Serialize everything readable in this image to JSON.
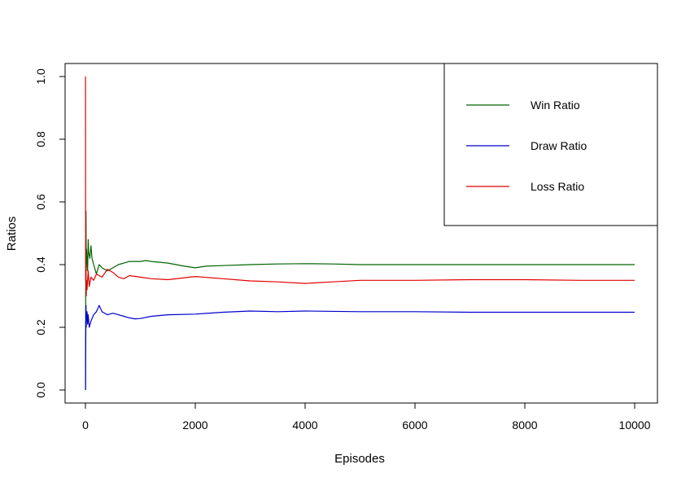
{
  "chart_data": {
    "type": "line",
    "xlabel": "Episodes",
    "ylabel": "Ratios",
    "xlim": [
      0,
      10000
    ],
    "ylim": [
      0,
      1
    ],
    "x_ticks": [
      0,
      2000,
      4000,
      6000,
      8000,
      10000
    ],
    "y_ticks": [
      0.0,
      0.2,
      0.4,
      0.6,
      0.8,
      1.0
    ],
    "x_tick_labels": [
      "0",
      "2000",
      "4000",
      "6000",
      "8000",
      "10000"
    ],
    "y_tick_labels": [
      "0.0",
      "0.2",
      "0.4",
      "0.6",
      "0.8",
      "1.0"
    ],
    "grid": false,
    "legend_position": "top-right",
    "series": [
      {
        "name": "Win Ratio",
        "color": "#006400",
        "points": [
          [
            1,
            0.0
          ],
          [
            5,
            0.3
          ],
          [
            10,
            0.57
          ],
          [
            15,
            0.38
          ],
          [
            20,
            0.45
          ],
          [
            30,
            0.42
          ],
          [
            40,
            0.38
          ],
          [
            50,
            0.48
          ],
          [
            60,
            0.44
          ],
          [
            80,
            0.42
          ],
          [
            100,
            0.46
          ],
          [
            120,
            0.42
          ],
          [
            150,
            0.4
          ],
          [
            200,
            0.37
          ],
          [
            250,
            0.4
          ],
          [
            300,
            0.39
          ],
          [
            400,
            0.38
          ],
          [
            500,
            0.39
          ],
          [
            600,
            0.4
          ],
          [
            700,
            0.405
          ],
          [
            800,
            0.41
          ],
          [
            1000,
            0.41
          ],
          [
            1100,
            0.413
          ],
          [
            1200,
            0.41
          ],
          [
            1500,
            0.405
          ],
          [
            1800,
            0.395
          ],
          [
            2000,
            0.39
          ],
          [
            2200,
            0.395
          ],
          [
            2500,
            0.397
          ],
          [
            3000,
            0.4
          ],
          [
            3500,
            0.402
          ],
          [
            4000,
            0.403
          ],
          [
            4500,
            0.402
          ],
          [
            5000,
            0.4
          ],
          [
            6000,
            0.4
          ],
          [
            7000,
            0.4
          ],
          [
            8000,
            0.4
          ],
          [
            9000,
            0.4
          ],
          [
            10000,
            0.4
          ]
        ]
      },
      {
        "name": "Draw Ratio",
        "color": "#0000cd",
        "points": [
          [
            1,
            0.0
          ],
          [
            5,
            0.12
          ],
          [
            10,
            0.27
          ],
          [
            15,
            0.2
          ],
          [
            20,
            0.23
          ],
          [
            30,
            0.25
          ],
          [
            40,
            0.21
          ],
          [
            50,
            0.24
          ],
          [
            70,
            0.2
          ],
          [
            100,
            0.22
          ],
          [
            150,
            0.24
          ],
          [
            200,
            0.25
          ],
          [
            250,
            0.27
          ],
          [
            300,
            0.25
          ],
          [
            400,
            0.24
          ],
          [
            500,
            0.245
          ],
          [
            600,
            0.24
          ],
          [
            700,
            0.235
          ],
          [
            800,
            0.23
          ],
          [
            900,
            0.227
          ],
          [
            1000,
            0.228
          ],
          [
            1200,
            0.235
          ],
          [
            1500,
            0.24
          ],
          [
            2000,
            0.242
          ],
          [
            2500,
            0.248
          ],
          [
            3000,
            0.252
          ],
          [
            3500,
            0.25
          ],
          [
            4000,
            0.252
          ],
          [
            5000,
            0.25
          ],
          [
            6000,
            0.25
          ],
          [
            7000,
            0.248
          ],
          [
            8000,
            0.248
          ],
          [
            9000,
            0.248
          ],
          [
            10000,
            0.248
          ]
        ]
      },
      {
        "name": "Loss Ratio",
        "color": "#e00000",
        "points": [
          [
            1,
            1.0
          ],
          [
            3,
            0.5
          ],
          [
            5,
            0.35
          ],
          [
            10,
            0.4
          ],
          [
            15,
            0.3
          ],
          [
            20,
            0.35
          ],
          [
            30,
            0.32
          ],
          [
            50,
            0.38
          ],
          [
            70,
            0.33
          ],
          [
            100,
            0.36
          ],
          [
            150,
            0.35
          ],
          [
            200,
            0.37
          ],
          [
            300,
            0.36
          ],
          [
            400,
            0.385
          ],
          [
            500,
            0.375
          ],
          [
            600,
            0.36
          ],
          [
            700,
            0.355
          ],
          [
            800,
            0.365
          ],
          [
            1000,
            0.36
          ],
          [
            1200,
            0.355
          ],
          [
            1500,
            0.352
          ],
          [
            2000,
            0.362
          ],
          [
            2500,
            0.355
          ],
          [
            3000,
            0.348
          ],
          [
            3500,
            0.345
          ],
          [
            4000,
            0.34
          ],
          [
            4500,
            0.345
          ],
          [
            5000,
            0.35
          ],
          [
            6000,
            0.35
          ],
          [
            7000,
            0.352
          ],
          [
            8000,
            0.352
          ],
          [
            9000,
            0.35
          ],
          [
            10000,
            0.35
          ]
        ]
      }
    ]
  }
}
